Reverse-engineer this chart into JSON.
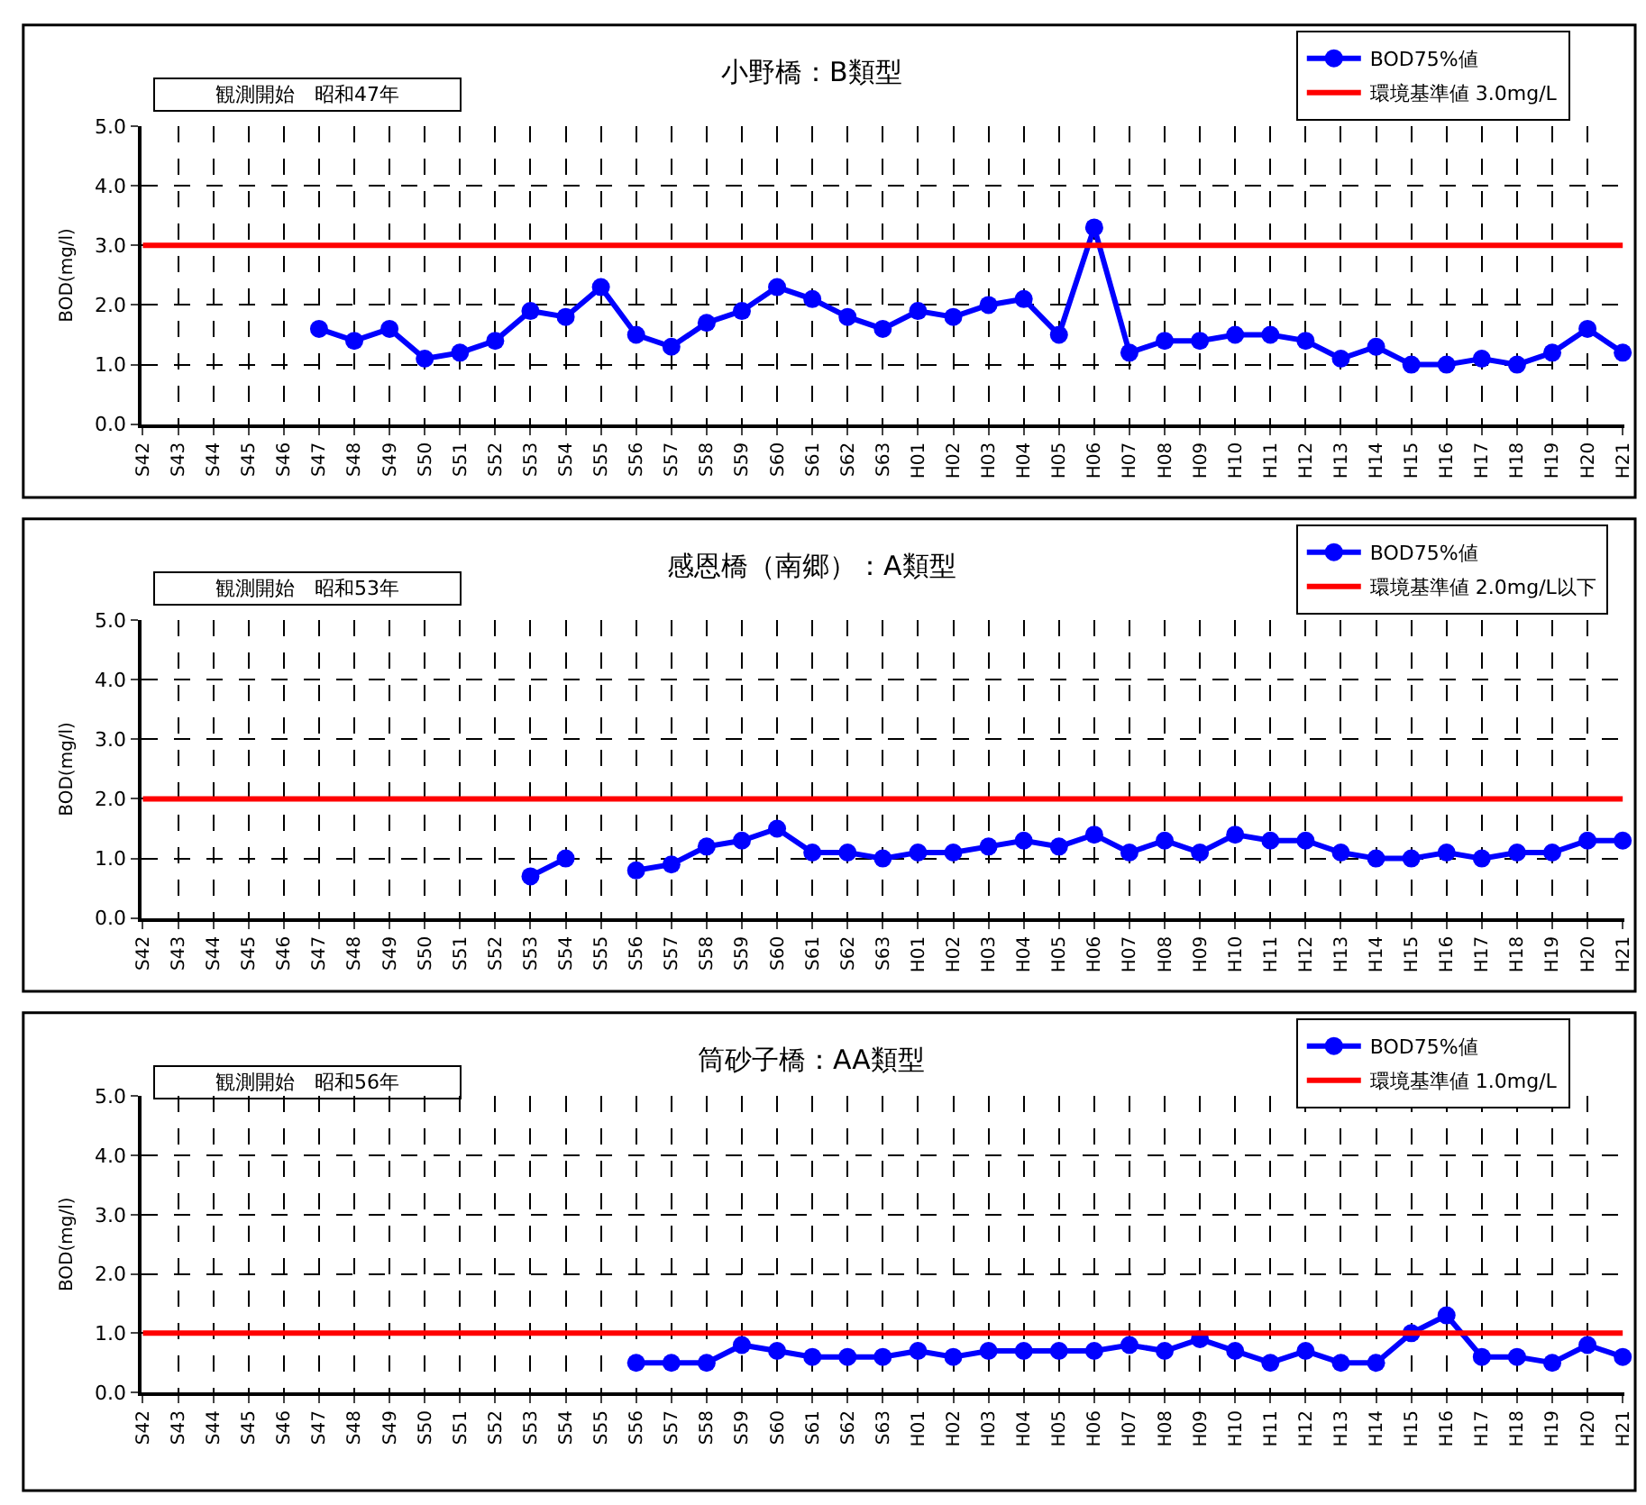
{
  "chart_data": [
    {
      "type": "line",
      "title": "小野橋：B類型",
      "ylabel": "BOD(mg/l)",
      "categories": [
        "S42",
        "S43",
        "S44",
        "S45",
        "S46",
        "S47",
        "S48",
        "S49",
        "S50",
        "S51",
        "S52",
        "S53",
        "S54",
        "S55",
        "S56",
        "S57",
        "S58",
        "S59",
        "S60",
        "S61",
        "S62",
        "S63",
        "H01",
        "H02",
        "H03",
        "H04",
        "H05",
        "H06",
        "H07",
        "H08",
        "H09",
        "H10",
        "H11",
        "H12",
        "H13",
        "H14",
        "H15",
        "H16",
        "H17",
        "H18",
        "H19",
        "H20",
        "H21"
      ],
      "series": [
        {
          "name": "BOD75%値",
          "color": "#0000ff",
          "values": [
            null,
            null,
            null,
            null,
            null,
            1.6,
            1.4,
            1.6,
            1.1,
            1.2,
            1.4,
            1.9,
            1.8,
            2.3,
            1.5,
            1.3,
            1.7,
            1.9,
            2.3,
            2.1,
            1.8,
            1.6,
            1.9,
            1.8,
            2.0,
            2.1,
            1.5,
            3.3,
            1.2,
            1.4,
            1.4,
            1.5,
            1.5,
            1.4,
            1.1,
            1.3,
            1.0,
            1.0,
            1.1,
            1.0,
            1.2,
            1.6,
            1.2
          ]
        }
      ],
      "ref_lines": [
        {
          "axis": "y",
          "value": 3.0,
          "label": "環境基準値 3.0mg/L",
          "color": "#ff0000"
        }
      ],
      "annotations": [
        "観測開始　昭和47年"
      ],
      "ylim": [
        0,
        5
      ],
      "yticks": [
        {
          "value": 0,
          "label": "0.0"
        },
        {
          "value": 1,
          "label": "1.0"
        },
        {
          "value": 2,
          "label": "2.0"
        },
        {
          "value": 3,
          "label": "3.0"
        },
        {
          "value": 4,
          "label": "4.0"
        },
        {
          "value": 5,
          "label": "5.0"
        }
      ],
      "grid": true,
      "legend": "top right",
      "marker": "circle",
      "line_style": "solid"
    },
    {
      "type": "line",
      "title": "感恩橋（南郷）：A類型",
      "ylabel": "BOD(mg/l)",
      "categories": [
        "S42",
        "S43",
        "S44",
        "S45",
        "S46",
        "S47",
        "S48",
        "S49",
        "S50",
        "S51",
        "S52",
        "S53",
        "S54",
        "S55",
        "S56",
        "S57",
        "S58",
        "S59",
        "S60",
        "S61",
        "S62",
        "S63",
        "H01",
        "H02",
        "H03",
        "H04",
        "H05",
        "H06",
        "H07",
        "H08",
        "H09",
        "H10",
        "H11",
        "H12",
        "H13",
        "H14",
        "H15",
        "H16",
        "H17",
        "H18",
        "H19",
        "H20",
        "H21"
      ],
      "series": [
        {
          "name": "BOD75%値",
          "color": "#0000ff",
          "values": [
            null,
            null,
            null,
            null,
            null,
            null,
            null,
            null,
            null,
            null,
            null,
            0.7,
            1.0,
            null,
            0.8,
            0.9,
            1.2,
            1.3,
            1.5,
            1.1,
            1.1,
            1.0,
            1.1,
            1.1,
            1.2,
            1.3,
            1.2,
            1.4,
            1.1,
            1.3,
            1.1,
            1.4,
            1.3,
            1.3,
            1.1,
            1.0,
            1.0,
            1.1,
            1.0,
            1.1,
            1.1,
            1.3,
            1.3
          ]
        }
      ],
      "ref_lines": [
        {
          "axis": "y",
          "value": 2.0,
          "label": "環境基準値 2.0mg/L以下",
          "color": "#ff0000"
        }
      ],
      "annotations": [
        "観測開始　昭和53年"
      ],
      "ylim": [
        0,
        5
      ],
      "yticks": [
        {
          "value": 0,
          "label": "0.0"
        },
        {
          "value": 1,
          "label": "1.0"
        },
        {
          "value": 2,
          "label": "2.0"
        },
        {
          "value": 3,
          "label": "3.0"
        },
        {
          "value": 4,
          "label": "4.0"
        },
        {
          "value": 5,
          "label": "5.0"
        }
      ],
      "grid": true,
      "legend": "top right",
      "marker": "circle",
      "line_style": "solid"
    },
    {
      "type": "line",
      "title": "筒砂子橋：AA類型",
      "ylabel": "BOD(mg/l)",
      "categories": [
        "S42",
        "S43",
        "S44",
        "S45",
        "S46",
        "S47",
        "S48",
        "S49",
        "S50",
        "S51",
        "S52",
        "S53",
        "S54",
        "S55",
        "S56",
        "S57",
        "S58",
        "S59",
        "S60",
        "S61",
        "S62",
        "S63",
        "H01",
        "H02",
        "H03",
        "H04",
        "H05",
        "H06",
        "H07",
        "H08",
        "H09",
        "H10",
        "H11",
        "H12",
        "H13",
        "H14",
        "H15",
        "H16",
        "H17",
        "H18",
        "H19",
        "H20",
        "H21"
      ],
      "series": [
        {
          "name": "BOD75%値",
          "color": "#0000ff",
          "values": [
            null,
            null,
            null,
            null,
            null,
            null,
            null,
            null,
            null,
            null,
            null,
            null,
            null,
            null,
            0.5,
            0.5,
            0.5,
            0.8,
            0.7,
            0.6,
            0.6,
            0.6,
            0.7,
            0.6,
            0.7,
            0.7,
            0.7,
            0.7,
            0.8,
            0.7,
            0.9,
            0.7,
            0.5,
            0.7,
            0.5,
            0.5,
            1.0,
            1.3,
            0.6,
            0.6,
            0.5,
            0.8,
            0.6
          ]
        }
      ],
      "ref_lines": [
        {
          "axis": "y",
          "value": 1.0,
          "label": "環境基準値 1.0mg/L",
          "color": "#ff0000"
        }
      ],
      "annotations": [
        "観測開始　昭和56年"
      ],
      "ylim": [
        0,
        5
      ],
      "yticks": [
        {
          "value": 0,
          "label": "0.0"
        },
        {
          "value": 1,
          "label": "1.0"
        },
        {
          "value": 2,
          "label": "2.0"
        },
        {
          "value": 3,
          "label": "3.0"
        },
        {
          "value": 4,
          "label": "4.0"
        },
        {
          "value": 5,
          "label": "5.0"
        }
      ],
      "grid": true,
      "legend": "top right",
      "marker": "circle",
      "line_style": "solid"
    }
  ]
}
